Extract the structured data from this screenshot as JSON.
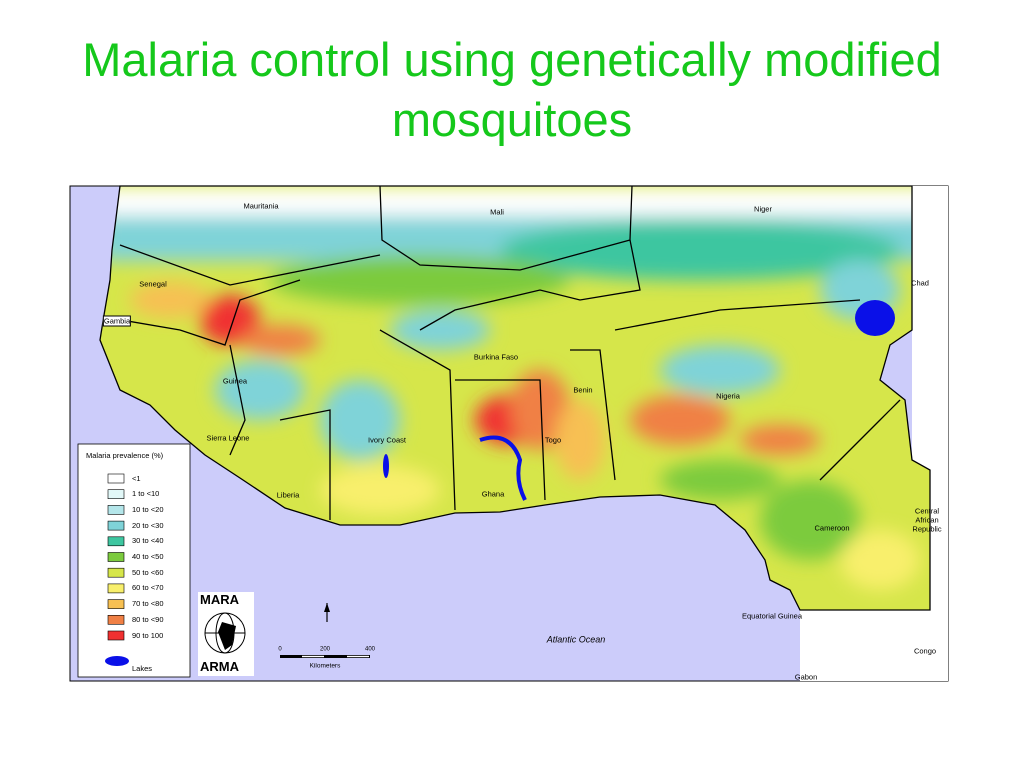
{
  "title": "Malaria control using genetically modified mosquitoes",
  "map": {
    "countries": [
      "Mauritania",
      "Mali",
      "Niger",
      "Chad",
      "Senegal",
      "Gambia",
      "Guinea",
      "Sierra Leone",
      "Liberia",
      "Ivory Coast",
      "Burkina Faso",
      "Ghana",
      "Togo",
      "Benin",
      "Nigeria",
      "Cameroon",
      "Central African Republic",
      "Equatorial Guinea",
      "Gabon",
      "Congo"
    ],
    "ocean_label": "Atlantic Ocean",
    "legend": {
      "title": "Malaria prevalence (%)",
      "items": [
        {
          "label": "<1",
          "color": "#ffffff"
        },
        {
          "label": "1 to <10",
          "color": "#e2f8f8"
        },
        {
          "label": "10 to <20",
          "color": "#b4e6ea"
        },
        {
          "label": "20 to <30",
          "color": "#7fd3d8"
        },
        {
          "label": "30 to <40",
          "color": "#3ec6a0"
        },
        {
          "label": "40 to <50",
          "color": "#7ccb3e"
        },
        {
          "label": "50 to <60",
          "color": "#d6e64a"
        },
        {
          "label": "60 to <70",
          "color": "#f8ef6c"
        },
        {
          "label": "70 to <80",
          "color": "#f7c052"
        },
        {
          "label": "80 to <90",
          "color": "#f08045"
        },
        {
          "label": "90 to 100",
          "color": "#f03030"
        }
      ],
      "lakes": {
        "label": "Lakes",
        "color": "#0a10e8"
      }
    },
    "logo": [
      "MARA",
      "ARMA"
    ],
    "scale": {
      "ticks": [
        "0",
        "200",
        "400"
      ],
      "unit": "Kilometers"
    }
  }
}
